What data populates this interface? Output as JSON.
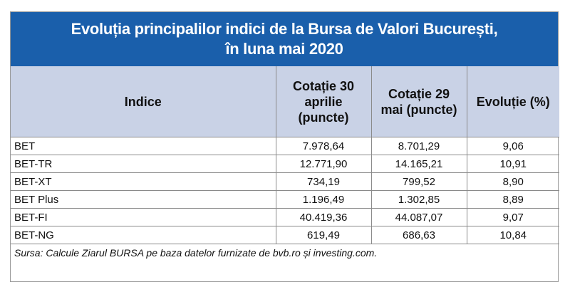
{
  "title": {
    "line1": "Evoluția principalilor indici de la Bursa de Valori București,",
    "line2": "în luna mai 2020"
  },
  "headers": {
    "indice": "Indice",
    "april": "Cotație 30 aprilie (puncte)",
    "may": "Cotație 29 mai (puncte)",
    "evolution": "Evoluție (%)"
  },
  "rows": [
    {
      "index": "BET",
      "april": "7.978,64",
      "may": "8.701,29",
      "evolution": "9,06"
    },
    {
      "index": "BET-TR",
      "april": "12.771,90",
      "may": "14.165,21",
      "evolution": "10,91"
    },
    {
      "index": "BET-XT",
      "april": "734,19",
      "may": "799,52",
      "evolution": "8,90"
    },
    {
      "index": "BET Plus",
      "april": "1.196,49",
      "may": "1.302,85",
      "evolution": "8,89"
    },
    {
      "index": "BET-FI",
      "april": "40.419,36",
      "may": "44.087,07",
      "evolution": "9,07"
    },
    {
      "index": "BET-NG",
      "april": "619,49",
      "may": "686,63",
      "evolution": "10,84"
    }
  ],
  "source": "Sursa: Calcule Ziarul BURSA pe baza datelor furnizate de bvb.ro și investing.com.",
  "colors": {
    "title_background": "#1a5fab",
    "header_background": "#c9d2e6"
  }
}
